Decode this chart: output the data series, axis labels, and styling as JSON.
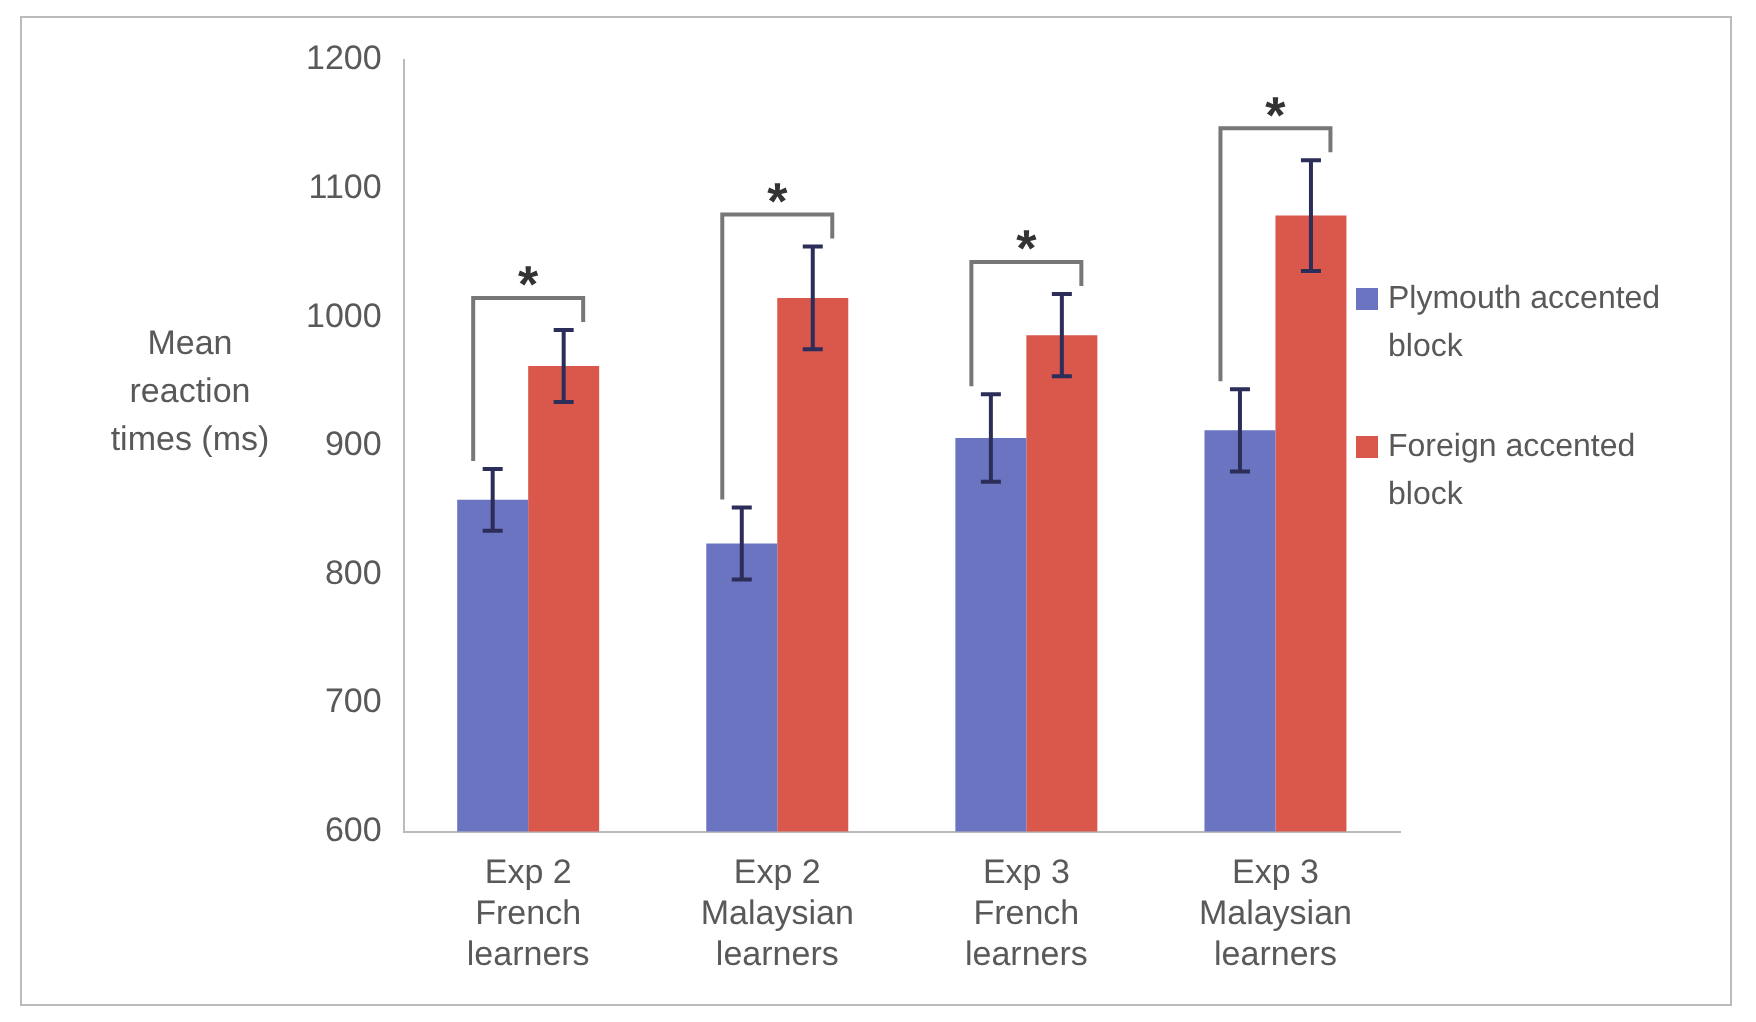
{
  "chart_data": {
    "type": "bar",
    "ylabel": "Mean reaction times (ms)",
    "categories": [
      "Exp 2 French learners",
      "Exp 2 Malaysian learners",
      "Exp 3 French learners",
      "Exp 3 Malaysian learners"
    ],
    "series": [
      {
        "name": "Plymouth accented block",
        "color": "#6a74c0",
        "values": [
          858,
          824,
          906,
          912
        ],
        "errors": [
          24,
          28,
          34,
          32
        ]
      },
      {
        "name": "Foreign accented block",
        "color": "#d9574b",
        "values": [
          962,
          1015,
          986,
          1079
        ],
        "errors": [
          28,
          40,
          32,
          43
        ]
      }
    ],
    "ylim": [
      600,
      1200
    ],
    "yticks": [
      600,
      700,
      800,
      900,
      1000,
      1100,
      1200
    ],
    "grid": false,
    "legend": "right",
    "annotations": [
      "*",
      "*",
      "*",
      "*"
    ]
  }
}
